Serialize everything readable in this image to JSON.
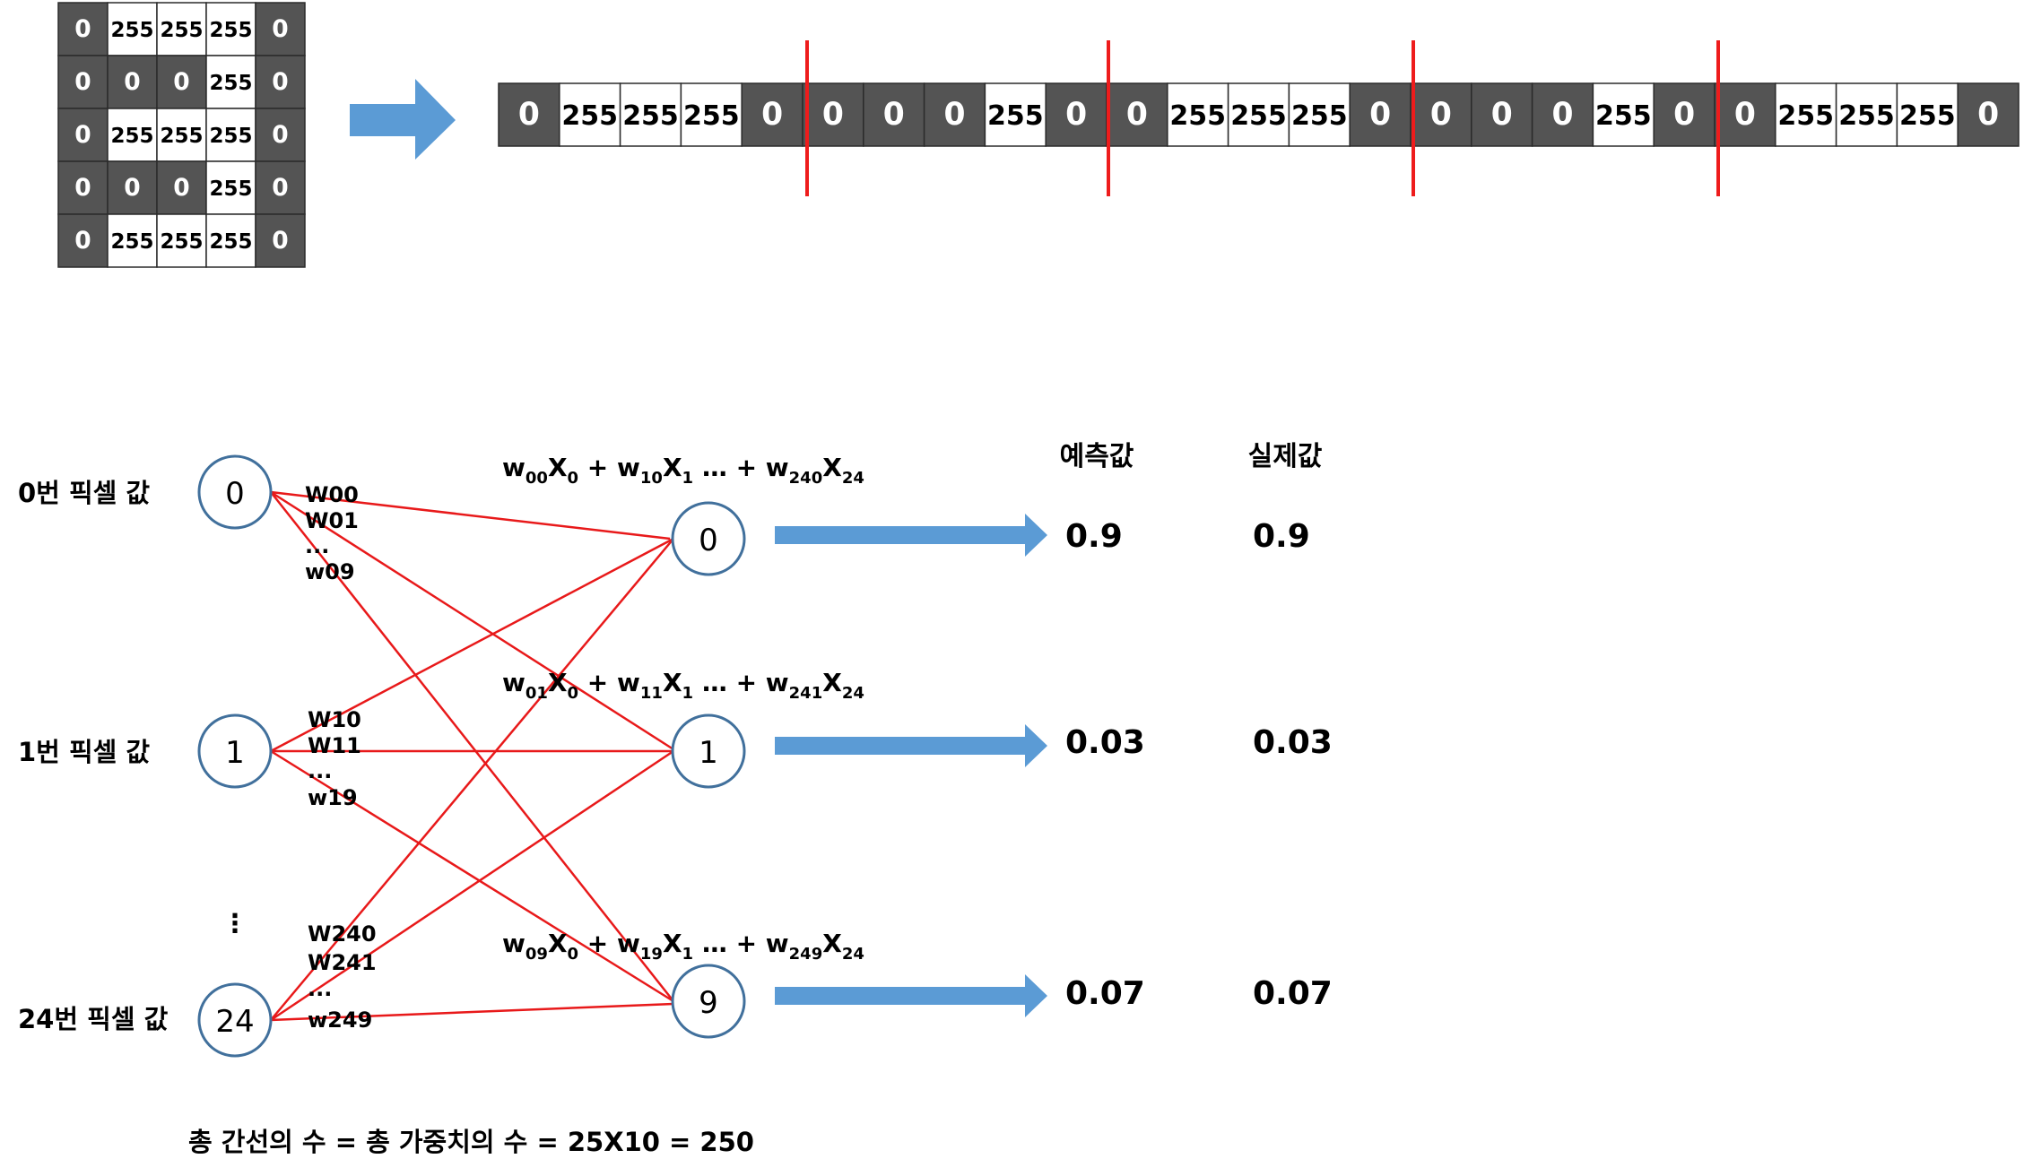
{
  "grid": {
    "rows": [
      [
        "0",
        "255",
        "255",
        "255",
        "0"
      ],
      [
        "0",
        "0",
        "0",
        "255",
        "0"
      ],
      [
        "0",
        "255",
        "255",
        "255",
        "0"
      ],
      [
        "0",
        "0",
        "0",
        "255",
        "0"
      ],
      [
        "0",
        "255",
        "255",
        "255",
        "0"
      ]
    ]
  },
  "flat_row": [
    "0",
    "255",
    "255",
    "255",
    "0",
    "0",
    "0",
    "0",
    "255",
    "0",
    "0",
    "255",
    "255",
    "255",
    "0",
    "0",
    "0",
    "0",
    "255",
    "0",
    "0",
    "255",
    "255",
    "255",
    "0"
  ],
  "colors": {
    "dark_cell": "#545454",
    "light_cell": "#ffffff",
    "arrow": "#5b9bd5",
    "edge": "#e8191a",
    "node_stroke": "#41709c",
    "separator": "#ee1c1c"
  },
  "inputs": [
    {
      "id": "0",
      "label": "0번 픽셀 값"
    },
    {
      "id": "1",
      "label": "1번 픽셀 값"
    },
    {
      "id": "24",
      "label": "24번 픽셀 값"
    }
  ],
  "input_ellipsis": "⋮",
  "weight_groups": [
    [
      "W00",
      "W01",
      "...",
      "w09"
    ],
    [
      "W10",
      "W11",
      "...",
      "w19"
    ],
    [
      "W240",
      "W241",
      "...",
      "w249"
    ]
  ],
  "outputs": [
    "0",
    "1",
    "9"
  ],
  "equations": [
    {
      "w0": "00",
      "w1": "10",
      "wn": "240"
    },
    {
      "w0": "01",
      "w1": "11",
      "wn": "241"
    },
    {
      "w0": "09",
      "w1": "19",
      "wn": "249"
    }
  ],
  "headers": {
    "predicted": "예측값",
    "actual": "실제값"
  },
  "predicted": [
    "0.9",
    "0.03",
    "0.07"
  ],
  "actual": [
    "0.9",
    "0.03",
    "0.07"
  ],
  "footer": "총 간선의 수 = 총 가중치의 수 = 25X10 = 250"
}
